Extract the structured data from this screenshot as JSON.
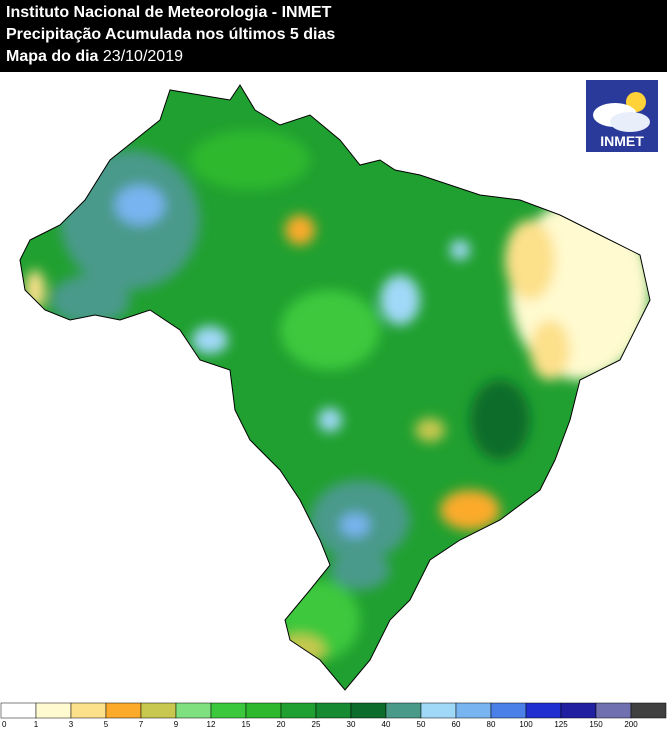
{
  "header": {
    "title": "Instituto Nacional de Meteorologia - INMET",
    "subtitle": "Precipitação Acumulada nos últimos 5 dias",
    "date_label": "Mapa do dia",
    "date": "23/10/2019"
  },
  "logo": {
    "text": "INMET"
  },
  "legend": {
    "labels": [
      "0",
      "1",
      "3",
      "5",
      "7",
      "9",
      "12",
      "15",
      "20",
      "25",
      "30",
      "40",
      "50",
      "60",
      "80",
      "100",
      "125",
      "150",
      "200"
    ],
    "colors": [
      "#ffffff",
      "#fffad0",
      "#fde08a",
      "#fbaa2a",
      "#c8c850",
      "#7ee07e",
      "#3cc83c",
      "#2db82d",
      "#20a030",
      "#158a30",
      "#0c6c2c",
      "#4a9a8a",
      "#a0d8f8",
      "#78b4f0",
      "#4a80e8",
      "#2030d0",
      "#2020a0",
      "#7070b0",
      "#404040"
    ]
  }
}
